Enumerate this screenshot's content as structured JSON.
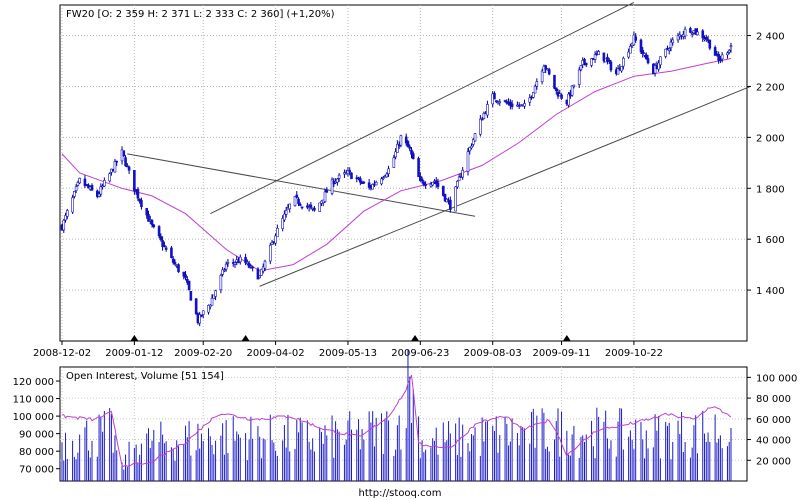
{
  "footer": "http://stooq.com",
  "chart_data": [
    {
      "type": "candlestick",
      "title": "FW20 [O: 2 359  H: 2 371  L: 2 333  C: 2 360] (+1,20%)",
      "x_tick_labels": [
        "2008-12-02",
        "2009-01-12",
        "2009-02-20",
        "2009-04-02",
        "2009-05-13",
        "2009-06-23",
        "2009-08-03",
        "2009-09-11",
        "2009-10-22"
      ],
      "y_tick_labels": [
        "1 400",
        "1 600",
        "1 800",
        "2 000",
        "2 200",
        "2 400"
      ],
      "ylim": [
        1200,
        2520
      ],
      "grid": true,
      "x_start": "2008-12-02",
      "x_end": "2009-12-16",
      "price_path": [
        {
          "date": "2008-12-02",
          "close": 1650
        },
        {
          "date": "2008-12-12",
          "close": 1830
        },
        {
          "date": "2008-12-22",
          "close": 1770
        },
        {
          "date": "2009-01-05",
          "close": 1940
        },
        {
          "date": "2009-01-12",
          "close": 1800
        },
        {
          "date": "2009-01-22",
          "close": 1650
        },
        {
          "date": "2009-02-02",
          "close": 1520
        },
        {
          "date": "2009-02-10",
          "close": 1440
        },
        {
          "date": "2009-02-17",
          "close": 1280
        },
        {
          "date": "2009-02-24",
          "close": 1350
        },
        {
          "date": "2009-03-05",
          "close": 1500
        },
        {
          "date": "2009-03-14",
          "close": 1520
        },
        {
          "date": "2009-03-24",
          "close": 1450
        },
        {
          "date": "2009-04-02",
          "close": 1620
        },
        {
          "date": "2009-04-12",
          "close": 1760
        },
        {
          "date": "2009-04-24",
          "close": 1710
        },
        {
          "date": "2009-05-05",
          "close": 1830
        },
        {
          "date": "2009-05-13",
          "close": 1860
        },
        {
          "date": "2009-05-25",
          "close": 1800
        },
        {
          "date": "2009-06-06",
          "close": 1880
        },
        {
          "date": "2009-06-12",
          "close": 2000
        },
        {
          "date": "2009-06-17",
          "close": 1950
        },
        {
          "date": "2009-06-23",
          "close": 1820
        },
        {
          "date": "2009-07-01",
          "close": 1830
        },
        {
          "date": "2009-07-10",
          "close": 1730
        },
        {
          "date": "2009-07-20",
          "close": 1940
        },
        {
          "date": "2009-07-28",
          "close": 2080
        },
        {
          "date": "2009-08-03",
          "close": 2160
        },
        {
          "date": "2009-08-12",
          "close": 2130
        },
        {
          "date": "2009-08-22",
          "close": 2120
        },
        {
          "date": "2009-09-01",
          "close": 2290
        },
        {
          "date": "2009-09-08",
          "close": 2180
        },
        {
          "date": "2009-09-14",
          "close": 2140
        },
        {
          "date": "2009-09-23",
          "close": 2290
        },
        {
          "date": "2009-10-03",
          "close": 2330
        },
        {
          "date": "2009-10-12",
          "close": 2250
        },
        {
          "date": "2009-10-22",
          "close": 2390
        },
        {
          "date": "2009-11-02",
          "close": 2260
        },
        {
          "date": "2009-11-12",
          "close": 2370
        },
        {
          "date": "2009-11-22",
          "close": 2430
        },
        {
          "date": "2009-12-02",
          "close": 2390
        },
        {
          "date": "2009-12-09",
          "close": 2300
        },
        {
          "date": "2009-12-16",
          "close": 2360
        }
      ],
      "moving_average_path": [
        {
          "date": "2008-12-02",
          "value": 1935
        },
        {
          "date": "2008-12-12",
          "value": 1860
        },
        {
          "date": "2009-01-05",
          "value": 1800
        },
        {
          "date": "2009-01-22",
          "value": 1770
        },
        {
          "date": "2009-02-10",
          "value": 1700
        },
        {
          "date": "2009-03-05",
          "value": 1560
        },
        {
          "date": "2009-03-24",
          "value": 1475
        },
        {
          "date": "2009-04-12",
          "value": 1500
        },
        {
          "date": "2009-05-01",
          "value": 1580
        },
        {
          "date": "2009-05-22",
          "value": 1710
        },
        {
          "date": "2009-06-12",
          "value": 1790
        },
        {
          "date": "2009-07-05",
          "value": 1830
        },
        {
          "date": "2009-07-28",
          "value": 1890
        },
        {
          "date": "2009-08-18",
          "value": 1980
        },
        {
          "date": "2009-09-08",
          "value": 2090
        },
        {
          "date": "2009-09-30",
          "value": 2180
        },
        {
          "date": "2009-10-22",
          "value": 2240
        },
        {
          "date": "2009-11-12",
          "value": 2260
        },
        {
          "date": "2009-12-02",
          "value": 2290
        },
        {
          "date": "2009-12-16",
          "value": 2310
        }
      ],
      "trend_lines": [
        {
          "from": {
            "date": "2009-01-08",
            "value": 1935
          },
          "to": {
            "date": "2009-07-24",
            "value": 1690
          }
        },
        {
          "from": {
            "date": "2009-02-24",
            "value": 1700
          },
          "to": {
            "date": "2009-10-22",
            "value": 2530
          }
        },
        {
          "from": {
            "date": "2009-03-24",
            "value": 1415
          },
          "to": {
            "date": "2009-12-27",
            "value": 2200
          }
        }
      ],
      "event_markers": [
        "2009-01-12",
        "2009-03-16",
        "2009-06-20",
        "2009-09-14"
      ]
    },
    {
      "type": "bar",
      "title": "Open Interest, Volume [51 154]",
      "y_tick_labels_left": [
        "70 000",
        "80 000",
        "90 000",
        "100 000",
        "110 000",
        "120 000"
      ],
      "y_tick_labels_right": [
        "20 000",
        "40 000",
        "60 000",
        "80 000",
        "100 000"
      ],
      "ylim_volume": [
        0,
        110000
      ],
      "ylim_open_interest": [
        63000,
        128000
      ],
      "grid": true,
      "volume_profile": [
        {
          "date": "2008-12-02",
          "value": 40000
        },
        {
          "date": "2008-12-30",
          "value": 48000
        },
        {
          "date": "2009-01-05",
          "value": 12000
        },
        {
          "date": "2009-01-12",
          "value": 36000
        },
        {
          "date": "2009-03-01",
          "value": 45000
        },
        {
          "date": "2009-05-01",
          "value": 42000
        },
        {
          "date": "2009-06-10",
          "value": 52000
        },
        {
          "date": "2009-06-17",
          "value": 100000
        },
        {
          "date": "2009-06-24",
          "value": 38000
        },
        {
          "date": "2009-08-01",
          "value": 45000
        },
        {
          "date": "2009-09-15",
          "value": 50000
        },
        {
          "date": "2009-11-01",
          "value": 45000
        },
        {
          "date": "2009-12-16",
          "value": 51154
        }
      ],
      "open_interest_path": [
        {
          "date": "2008-12-02",
          "value": 100000
        },
        {
          "date": "2008-12-20",
          "value": 98000
        },
        {
          "date": "2008-12-30",
          "value": 102000
        },
        {
          "date": "2009-01-05",
          "value": 72000
        },
        {
          "date": "2009-01-20",
          "value": 73000
        },
        {
          "date": "2009-02-10",
          "value": 85000
        },
        {
          "date": "2009-03-01",
          "value": 102000
        },
        {
          "date": "2009-03-20",
          "value": 98000
        },
        {
          "date": "2009-04-10",
          "value": 100000
        },
        {
          "date": "2009-05-01",
          "value": 92000
        },
        {
          "date": "2009-05-20",
          "value": 88000
        },
        {
          "date": "2009-06-05",
          "value": 100000
        },
        {
          "date": "2009-06-15",
          "value": 115000
        },
        {
          "date": "2009-06-18",
          "value": 124000
        },
        {
          "date": "2009-06-22",
          "value": 84000
        },
        {
          "date": "2009-07-10",
          "value": 82000
        },
        {
          "date": "2009-07-25",
          "value": 96000
        },
        {
          "date": "2009-08-10",
          "value": 100000
        },
        {
          "date": "2009-08-20",
          "value": 92000
        },
        {
          "date": "2009-09-05",
          "value": 98000
        },
        {
          "date": "2009-09-14",
          "value": 78000
        },
        {
          "date": "2009-10-01",
          "value": 92000
        },
        {
          "date": "2009-10-22",
          "value": 96000
        },
        {
          "date": "2009-11-10",
          "value": 101000
        },
        {
          "date": "2009-11-25",
          "value": 98000
        },
        {
          "date": "2009-12-05",
          "value": 106000
        },
        {
          "date": "2009-12-16",
          "value": 100000
        }
      ]
    }
  ]
}
